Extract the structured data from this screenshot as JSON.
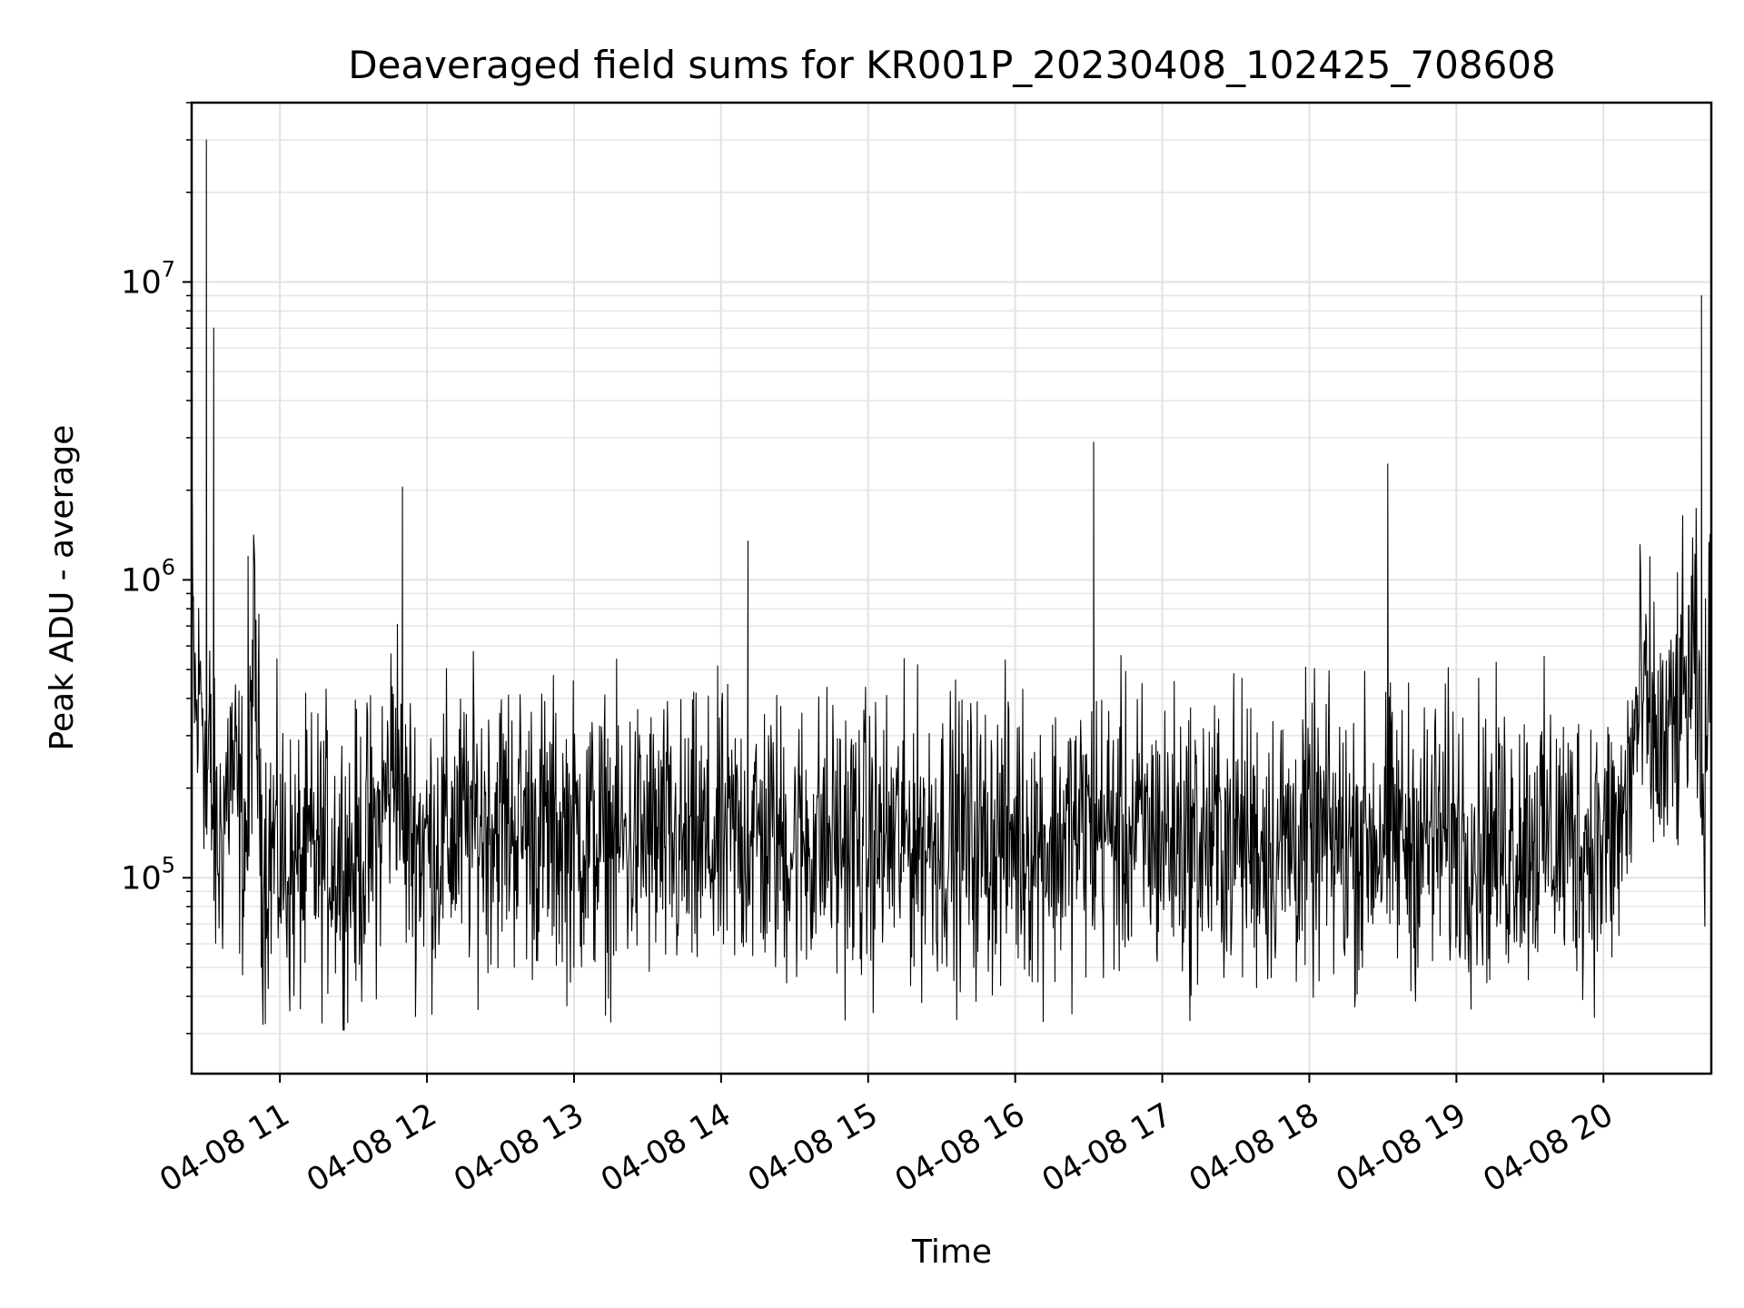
{
  "chart_data": {
    "type": "line",
    "title": "Deaveraged field sums for KR001P_20230408_102425_708608",
    "xlabel": "Time",
    "ylabel": "Peak ADU - average",
    "yscale": "log",
    "ylim": [
      22000,
      40000000
    ],
    "xlim": [
      "2023-04-08 10:24",
      "2023-04-08 20:44"
    ],
    "grid": true,
    "line_color": "#000000",
    "x_ticks": [
      {
        "t": "2023-04-08 11:00",
        "label": "04-08 11"
      },
      {
        "t": "2023-04-08 12:00",
        "label": "04-08 12"
      },
      {
        "t": "2023-04-08 13:00",
        "label": "04-08 13"
      },
      {
        "t": "2023-04-08 14:00",
        "label": "04-08 14"
      },
      {
        "t": "2023-04-08 15:00",
        "label": "04-08 15"
      },
      {
        "t": "2023-04-08 16:00",
        "label": "04-08 16"
      },
      {
        "t": "2023-04-08 17:00",
        "label": "04-08 17"
      },
      {
        "t": "2023-04-08 18:00",
        "label": "04-08 18"
      },
      {
        "t": "2023-04-08 19:00",
        "label": "04-08 19"
      },
      {
        "t": "2023-04-08 20:00",
        "label": "04-08 20"
      }
    ],
    "y_ticks": [
      {
        "v": 100000,
        "base": "10",
        "exp": "5"
      },
      {
        "v": 1000000,
        "base": "10",
        "exp": "6"
      },
      {
        "v": 10000000,
        "base": "10",
        "exp": "7"
      }
    ],
    "series": [
      {
        "x": [
          "2023-04-08 10:24",
          "2023-04-08 10:26",
          "2023-04-08 10:28",
          "2023-04-08 10:29",
          "2023-04-08 10:30",
          "2023-04-08 10:31",
          "2023-04-08 10:33",
          "2023-04-08 10:35",
          "2023-04-08 10:40",
          "2023-04-08 10:44",
          "2023-04-08 10:47",
          "2023-04-08 10:49",
          "2023-04-08 10:51",
          "2023-04-08 10:53",
          "2023-04-08 10:57",
          "2023-04-08 11:00",
          "2023-04-08 11:05",
          "2023-04-08 11:10",
          "2023-04-08 11:15",
          "2023-04-08 11:20",
          "2023-04-08 11:30",
          "2023-04-08 11:40",
          "2023-04-08 11:48",
          "2023-04-08 11:50",
          "2023-04-08 11:52",
          "2023-04-08 12:00",
          "2023-04-08 12:10",
          "2023-04-08 12:20",
          "2023-04-08 12:30",
          "2023-04-08 12:40",
          "2023-04-08 12:50",
          "2023-04-08 13:00",
          "2023-04-08 13:15",
          "2023-04-08 13:30",
          "2023-04-08 13:45",
          "2023-04-08 14:00",
          "2023-04-08 14:10",
          "2023-04-08 14:11",
          "2023-04-08 14:12",
          "2023-04-08 14:30",
          "2023-04-08 14:45",
          "2023-04-08 15:00",
          "2023-04-08 15:15",
          "2023-04-08 15:30",
          "2023-04-08 15:45",
          "2023-04-08 16:00",
          "2023-04-08 16:15",
          "2023-04-08 16:30",
          "2023-04-08 16:32",
          "2023-04-08 16:34",
          "2023-04-08 16:45",
          "2023-04-08 17:00",
          "2023-04-08 17:15",
          "2023-04-08 17:30",
          "2023-04-08 17:45",
          "2023-04-08 18:00",
          "2023-04-08 18:15",
          "2023-04-08 18:30",
          "2023-04-08 18:32",
          "2023-04-08 18:34",
          "2023-04-08 18:45",
          "2023-04-08 19:00",
          "2023-04-08 19:15",
          "2023-04-08 19:30",
          "2023-04-08 19:45",
          "2023-04-08 20:00",
          "2023-04-08 20:07",
          "2023-04-08 20:10",
          "2023-04-08 20:15",
          "2023-04-08 20:20",
          "2023-04-08 20:25",
          "2023-04-08 20:30",
          "2023-04-08 20:35",
          "2023-04-08 20:38",
          "2023-04-08 20:40",
          "2023-04-08 20:44"
        ],
        "y": [
          800000,
          300000,
          500000,
          350000,
          30000000,
          280000,
          7000000,
          120000,
          250000,
          150000,
          1200000,
          600000,
          300000,
          110000,
          130000,
          120000,
          100000,
          110000,
          120000,
          125000,
          110000,
          140000,
          300000,
          2050000,
          150000,
          130000,
          140000,
          150000,
          160000,
          150000,
          140000,
          140000,
          130000,
          135000,
          120000,
          130000,
          140000,
          1350000,
          140000,
          130000,
          135000,
          130000,
          135000,
          140000,
          130000,
          140000,
          130000,
          150000,
          2900000,
          150000,
          140000,
          140000,
          130000,
          140000,
          130000,
          135000,
          130000,
          140000,
          2450000,
          140000,
          135000,
          140000,
          130000,
          140000,
          135000,
          130000,
          140000,
          200000,
          400000,
          300000,
          250000,
          350000,
          450000,
          500000,
          9000000,
          600000
        ]
      }
    ]
  }
}
